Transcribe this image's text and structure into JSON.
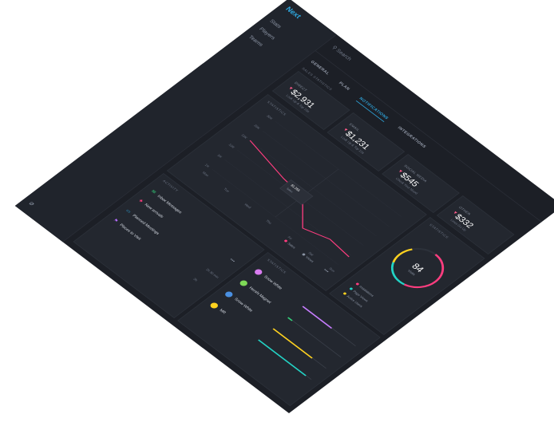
{
  "app": {
    "brand": "Next",
    "nav": [
      "Stats",
      "Players",
      "Teams"
    ],
    "search_placeholder": "Search"
  },
  "tabs": [
    {
      "label": "GENERAL",
      "active": false
    },
    {
      "label": "PLAN",
      "active": false
    },
    {
      "label": "NOTIFICATIONS",
      "active": true
    },
    {
      "label": "INTEGRATIONS",
      "active": false
    }
  ],
  "sales_statistics": {
    "title": "SALES STATISTICS",
    "stats": [
      {
        "label": "DIRECT",
        "value": "$2,931",
        "sub": "Look Up & Top 10s",
        "color": "#ff5a8a"
      },
      {
        "label": "EMAIL",
        "value": "$1,231",
        "sub": "Look Up & Top 10s",
        "color": "#ff5a8a"
      },
      {
        "label": "SOCIAL MEDIA",
        "value": "$545",
        "sub": "Check Your Mood",
        "color": "#ff5a8a"
      },
      {
        "label": "OTHER",
        "value": "$332",
        "sub": "Lines Go Up",
        "color": "#ff5a8a"
      }
    ]
  },
  "statistics_chart": {
    "title": "STATISTICS",
    "tooltip": {
      "value": "$1,255",
      "label": "Sales"
    },
    "legend": [
      {
        "name": "Sales",
        "color": "#ff3d7f"
      },
      {
        "name": "Views",
        "color": "#8a93a3"
      }
    ]
  },
  "chart_data": {
    "type": "line",
    "categories": [
      "Mon",
      "Tue",
      "Wed",
      "Thu",
      "Fri",
      "Sat",
      "Sun"
    ],
    "y_ticks": [
      "30K",
      "20K",
      "15K",
      "10K",
      "5K",
      "1K"
    ],
    "series": [
      {
        "name": "Sales",
        "color": "#ff3d7f",
        "values": [
          18,
          16,
          14,
          13,
          3,
          6,
          5
        ]
      }
    ],
    "ylim": [
      0,
      30
    ],
    "grid": true,
    "legend": "bottom-right"
  },
  "activity": {
    "title": "ACTIVITY",
    "items": [
      {
        "icon": "✉",
        "label": "Inbox Messages",
        "time": "",
        "color": "#33d17a"
      },
      {
        "icon": "♣",
        "label": "New arrivals",
        "time": "",
        "color": "#ff3d7f"
      },
      {
        "icon": "▭",
        "label": "Planned Meetings",
        "time": "2h 30 min",
        "color": "#2ea8e0"
      },
      {
        "icon": "⚑",
        "label": "Places to Visit",
        "time": "3h",
        "color": "#b46cff"
      }
    ]
  },
  "players": {
    "title": "STATISTICS",
    "items": [
      {
        "name": "Snow White",
        "color": "#c77dff",
        "avatar": "#d97cf0",
        "progress": 0.55
      },
      {
        "name": "Hershi Magnet",
        "color": "#33d17a",
        "avatar": "#7ed957",
        "progress": 0.08
      },
      {
        "name": "Snow White",
        "color": "#ffd21f",
        "avatar": "#4a90e2",
        "progress": 0.74
      },
      {
        "name": "MR",
        "color": "#22d3c5",
        "avatar": "#ffd21f",
        "progress": 0.9
      }
    ]
  },
  "donut": {
    "title": "STATISTICS",
    "value": "84",
    "caption": "Visits",
    "progress": 0.84,
    "colors": [
      "#ff3d7f",
      "#22d3c5",
      "#ffd21f"
    ],
    "legend": [
      {
        "name": "Instalations",
        "color": "#ff3d7f"
      },
      {
        "name": "Page Views",
        "color": "#22d3c5"
      },
      {
        "name": "Active Users",
        "color": "#ffd21f"
      }
    ]
  }
}
